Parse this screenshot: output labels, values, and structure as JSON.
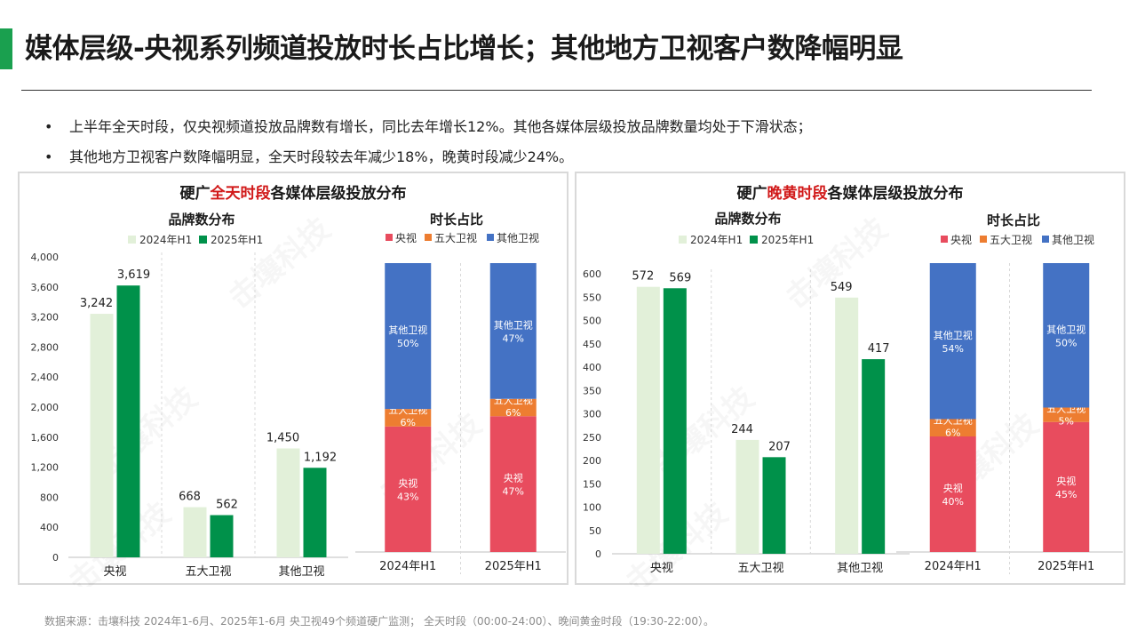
{
  "title": "媒体层级-央视系列频道投放时长占比增长；其他地方卫视客户数降幅明显",
  "bullets": [
    "上半年全天时段，仅央视频道投放品牌数有增长，同比去年增长12%。其他各媒体层级投放品牌数量均处于下滑状态；",
    "其他地方卫视客户数降幅明显，全天时段较去年减少18%，晚黄时段减少24%。"
  ],
  "panels": [
    {
      "title_pre": "硬广",
      "title_highlight": "全天时段",
      "title_post": "各媒体层级投放分布"
    },
    {
      "title_pre": "硬广",
      "title_highlight": "晚黄时段",
      "title_post": "各媒体层级投放分布"
    }
  ],
  "watermark": "击壤科技",
  "source": "数据来源：击壤科技  2024年1-6月、2025年1-6月 央卫视49个频道硬广监测； 全天时段（00:00-24:00）、晚间黄金时段（19:30-22:00）。",
  "colors": {
    "accent": "#1aa04f",
    "highlight": "#d11919",
    "bar_2024": "#e2f0d9",
    "bar_2025": "#00914a",
    "cctv": "#e84c5e",
    "top5": "#ed7d31",
    "other": "#4472c4"
  },
  "chart_data": [
    {
      "type": "bar",
      "title": "品牌数分布",
      "categories": [
        "央视",
        "五大卫视",
        "其他卫视"
      ],
      "series": [
        {
          "name": "2024年H1",
          "values": [
            3242,
            668,
            1450
          ]
        },
        {
          "name": "2025年H1",
          "values": [
            3619,
            562,
            1192
          ]
        }
      ],
      "ylim": [
        0,
        4000
      ],
      "yticks": [
        0,
        400,
        800,
        1200,
        1600,
        2000,
        2400,
        2800,
        3200,
        3600,
        4000
      ],
      "ytick_labels": [
        "0",
        "400",
        "800",
        "1,200",
        "1,600",
        "2,000",
        "2,400",
        "2,800",
        "3,200",
        "3,600",
        "4,000"
      ],
      "value_labels": [
        [
          "3,242",
          "668",
          "1,450"
        ],
        [
          "3,619",
          "562",
          "1,192"
        ]
      ],
      "legend": "top"
    },
    {
      "type": "bar",
      "stacked": true,
      "title": "时长占比",
      "categories": [
        "2024年H1",
        "2025年H1"
      ],
      "series": [
        {
          "name": "央视",
          "values": [
            43,
            47
          ]
        },
        {
          "name": "五大卫视",
          "values": [
            6,
            6
          ]
        },
        {
          "name": "其他卫视",
          "values": [
            50,
            47
          ]
        }
      ],
      "unit": "%",
      "legend": "top"
    },
    {
      "type": "bar",
      "title": "品牌数分布",
      "categories": [
        "央视",
        "五大卫视",
        "其他卫视"
      ],
      "series": [
        {
          "name": "2024年H1",
          "values": [
            572,
            244,
            549
          ]
        },
        {
          "name": "2025年H1",
          "values": [
            569,
            207,
            417
          ]
        }
      ],
      "ylim": [
        0,
        600
      ],
      "yticks": [
        0,
        50,
        100,
        150,
        200,
        250,
        300,
        350,
        400,
        450,
        500,
        550,
        600
      ],
      "ytick_labels": [
        "0",
        "50",
        "100",
        "150",
        "200",
        "250",
        "300",
        "350",
        "400",
        "450",
        "500",
        "550",
        "600"
      ],
      "value_labels": [
        [
          "572",
          "244",
          "549"
        ],
        [
          "569",
          "207",
          "417"
        ]
      ],
      "legend": "top"
    },
    {
      "type": "bar",
      "stacked": true,
      "title": "时长占比",
      "categories": [
        "2024年H1",
        "2025年H1"
      ],
      "series": [
        {
          "name": "央视",
          "values": [
            40,
            45
          ]
        },
        {
          "name": "五大卫视",
          "values": [
            6,
            5
          ]
        },
        {
          "name": "其他卫视",
          "values": [
            54,
            50
          ]
        }
      ],
      "unit": "%",
      "legend": "top"
    }
  ]
}
